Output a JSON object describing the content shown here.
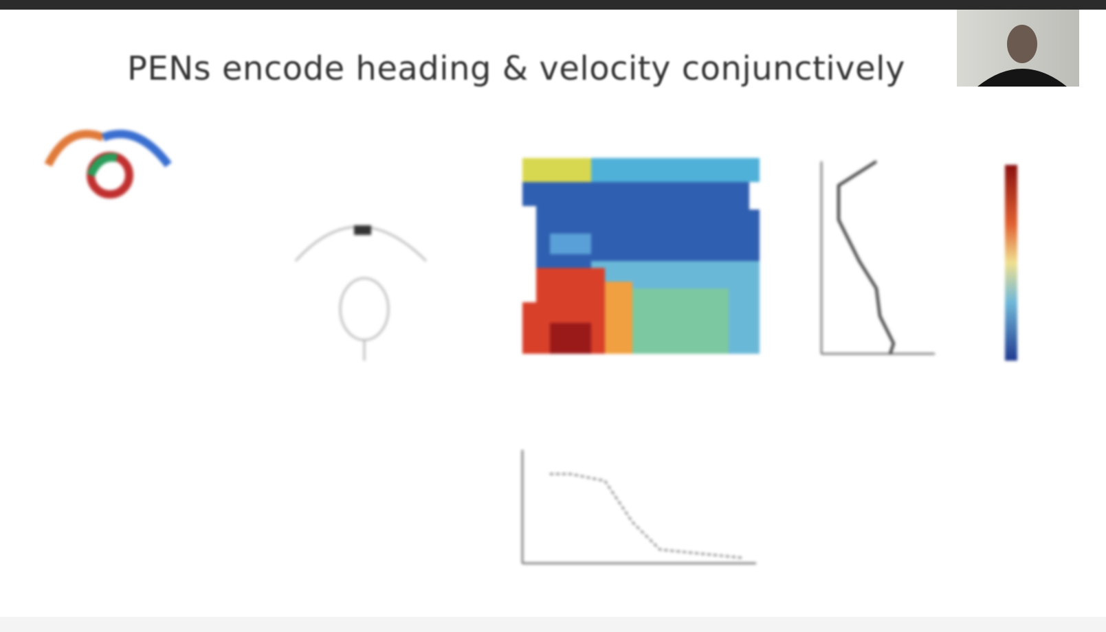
{
  "slide": {
    "title": "PENs encode heading & velocity conjunctively"
  }
}
